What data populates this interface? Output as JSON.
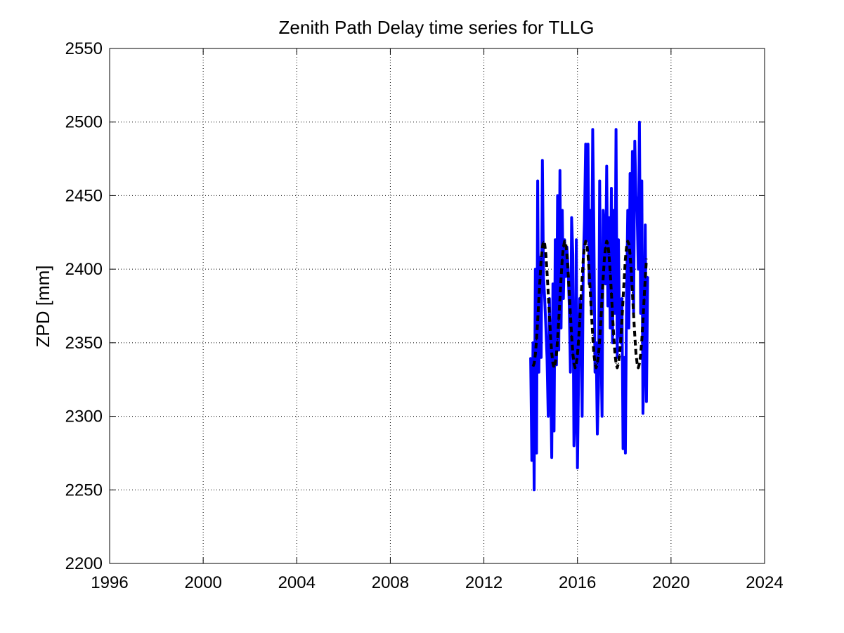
{
  "chart_data": {
    "type": "line",
    "title": "Zenith Path Delay time series for TLLG",
    "xlabel": "",
    "ylabel": "ZPD [mm]",
    "xlim": [
      1996,
      2024
    ],
    "ylim": [
      2200,
      2550
    ],
    "x_ticks": [
      1996,
      2000,
      2004,
      2008,
      2012,
      2016,
      2020,
      2024
    ],
    "y_ticks": [
      2200,
      2250,
      2300,
      2350,
      2400,
      2450,
      2500,
      2550
    ],
    "x_tick_labels": [
      "1996",
      "2000",
      "2004",
      "2008",
      "2012",
      "2016",
      "2020",
      "2024"
    ],
    "y_tick_labels": [
      "2200",
      "2250",
      "2300",
      "2350",
      "2400",
      "2450",
      "2500",
      "2550"
    ],
    "grid": true,
    "series": [
      {
        "style": "solid",
        "color": "#0000ff",
        "x": [
          2014.0,
          2014.05,
          2014.1,
          2014.15,
          2014.2,
          2014.25,
          2014.3,
          2014.35,
          2014.4,
          2014.45,
          2014.5,
          2014.55,
          2014.6,
          2014.65,
          2014.7,
          2014.75,
          2014.8,
          2014.85,
          2014.9,
          2014.95,
          2015.0,
          2015.05,
          2015.1,
          2015.15,
          2015.2,
          2015.25,
          2015.3,
          2015.35,
          2015.4,
          2015.45,
          2015.5,
          2015.55,
          2015.6,
          2015.65,
          2015.7,
          2015.75,
          2015.8,
          2015.85,
          2015.9,
          2015.95,
          2016.0,
          2016.05,
          2016.1,
          2016.15,
          2016.2,
          2016.25,
          2016.3,
          2016.35,
          2016.4,
          2016.45,
          2016.5,
          2016.55,
          2016.6,
          2016.65,
          2016.7,
          2016.75,
          2016.8,
          2016.85,
          2016.9,
          2016.95,
          2017.0,
          2017.05,
          2017.1,
          2017.15,
          2017.2,
          2017.25,
          2017.3,
          2017.35,
          2017.4,
          2017.45,
          2017.5,
          2017.55,
          2017.6,
          2017.65,
          2017.7,
          2017.75,
          2017.8,
          2017.85,
          2017.9,
          2017.95,
          2018.0,
          2018.05,
          2018.1,
          2018.15,
          2018.2,
          2018.25,
          2018.3,
          2018.35,
          2018.4,
          2018.45,
          2018.5,
          2018.55,
          2018.6,
          2018.65,
          2018.7,
          2018.75,
          2018.8,
          2018.85,
          2018.9,
          2018.95,
          2019.0
        ],
        "y": [
          2340,
          2270,
          2350,
          2250,
          2400,
          2275,
          2460,
          2330,
          2408,
          2340,
          2474,
          2395,
          2380,
          2360,
          2340,
          2300,
          2380,
          2330,
          2272,
          2390,
          2290,
          2420,
          2335,
          2450,
          2345,
          2467,
          2360,
          2440,
          2380,
          2420,
          2395,
          2415,
          2400,
          2375,
          2330,
          2435,
          2410,
          2280,
          2300,
          2420,
          2265,
          2330,
          2380,
          2370,
          2300,
          2405,
          2433,
          2485,
          2420,
          2485,
          2390,
          2440,
          2370,
          2495,
          2430,
          2330,
          2350,
          2288,
          2320,
          2460,
          2355,
          2300,
          2440,
          2425,
          2390,
          2470,
          2375,
          2435,
          2360,
          2455,
          2350,
          2440,
          2370,
          2495,
          2340,
          2420,
          2360,
          2350,
          2380,
          2278,
          2340,
          2275,
          2380,
          2440,
          2360,
          2465,
          2390,
          2480,
          2370,
          2487,
          2450,
          2440,
          2400,
          2500,
          2370,
          2460,
          2302,
          2340,
          2430,
          2310,
          2395
        ]
      },
      {
        "style": "dashed",
        "color": "#000000",
        "x": [
          2014.1,
          2014.15,
          2014.2,
          2014.25,
          2014.3,
          2014.35,
          2014.4,
          2014.45,
          2014.5,
          2014.55,
          2014.6,
          2014.65,
          2014.7,
          2014.75,
          2014.8,
          2014.85,
          2014.9,
          2014.95,
          2015.0,
          2015.05,
          2015.1,
          2015.15,
          2015.2,
          2015.25,
          2015.3,
          2015.35,
          2015.4,
          2015.45,
          2015.5,
          2015.55,
          2015.6,
          2015.65,
          2015.7,
          2015.75,
          2015.8,
          2015.85,
          2015.9,
          2015.95,
          2016.0,
          2016.05,
          2016.1,
          2016.15,
          2016.2,
          2016.25,
          2016.3,
          2016.35,
          2016.4,
          2016.45,
          2016.5,
          2016.55,
          2016.6,
          2016.65,
          2016.7,
          2016.75,
          2016.8,
          2016.85,
          2016.9,
          2016.95,
          2017.0,
          2017.05,
          2017.1,
          2017.15,
          2017.2,
          2017.25,
          2017.3,
          2017.35,
          2017.4,
          2017.45,
          2017.5,
          2017.55,
          2017.6,
          2017.65,
          2017.7,
          2017.75,
          2017.8,
          2017.85,
          2017.9,
          2017.95,
          2018.0,
          2018.05,
          2018.1,
          2018.15,
          2018.2,
          2018.25,
          2018.3,
          2018.35,
          2018.4,
          2018.45,
          2018.5,
          2018.55,
          2018.6,
          2018.65,
          2018.7,
          2018.75,
          2018.8,
          2018.85,
          2018.9,
          2018.95
        ],
        "y": [
          2334,
          2336,
          2342,
          2352,
          2365,
          2380,
          2394,
          2407,
          2415,
          2419,
          2417,
          2410,
          2398,
          2384,
          2369,
          2355,
          2343,
          2336,
          2333,
          2336,
          2342,
          2352,
          2365,
          2380,
          2394,
          2407,
          2415,
          2419,
          2417,
          2410,
          2398,
          2384,
          2369,
          2355,
          2343,
          2336,
          2333,
          2336,
          2342,
          2352,
          2365,
          2380,
          2394,
          2407,
          2415,
          2419,
          2417,
          2410,
          2398,
          2384,
          2369,
          2355,
          2343,
          2336,
          2333,
          2336,
          2342,
          2352,
          2365,
          2380,
          2394,
          2407,
          2415,
          2419,
          2417,
          2410,
          2398,
          2384,
          2369,
          2355,
          2343,
          2336,
          2333,
          2336,
          2342,
          2352,
          2365,
          2380,
          2394,
          2407,
          2415,
          2419,
          2417,
          2410,
          2398,
          2384,
          2369,
          2355,
          2343,
          2336,
          2333,
          2336,
          2342,
          2352,
          2365,
          2380,
          2394,
          2407
        ]
      }
    ]
  }
}
